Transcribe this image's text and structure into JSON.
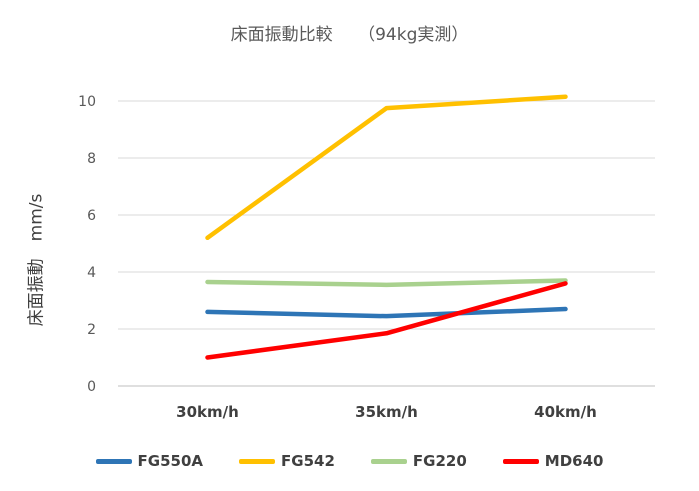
{
  "chart_data": {
    "type": "line",
    "title": "床面振動比較　　（94kg実測）",
    "ylabel": "床面振動　mm/s",
    "xlabel": "",
    "categories": [
      "30km/h",
      "35km/h",
      "40km/h"
    ],
    "ylim": [
      0,
      10
    ],
    "yticks": [
      0,
      2,
      4,
      6,
      8,
      10
    ],
    "grid": true,
    "legend_position": "bottom",
    "series": [
      {
        "name": "FG550A",
        "color": "#2E75B6",
        "values": [
          2.6,
          2.45,
          2.7
        ]
      },
      {
        "name": "FG542",
        "color": "#FFC000",
        "values": [
          5.2,
          9.75,
          10.15
        ]
      },
      {
        "name": "FG220",
        "color": "#A9D18E",
        "values": [
          3.65,
          3.55,
          3.7
        ]
      },
      {
        "name": "MD640",
        "color": "#FF0000",
        "values": [
          1.0,
          1.85,
          3.6
        ]
      }
    ]
  }
}
